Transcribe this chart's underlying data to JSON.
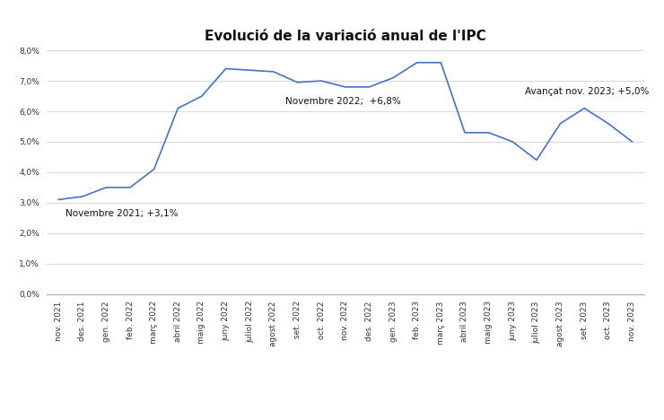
{
  "title": "Evolució de la variació anual de l'IPC",
  "labels": [
    "nov. 2021",
    "des. 2021",
    "gen. 2022",
    "feb. 2022",
    "març 2022",
    "abril 2022",
    "maig 2022",
    "juny 2022",
    "juliol 2022",
    "agost 2022",
    "set. 2022",
    "oct. 2022",
    "nov. 2022",
    "des. 2022",
    "gen. 2023",
    "feb. 2023",
    "març 2023",
    "abril 2023",
    "maig 2023",
    "juny 2023",
    "juliol 2023",
    "agost 2023",
    "set. 2023",
    "oct. 2023",
    "nov. 2023"
  ],
  "values": [
    3.1,
    3.2,
    3.5,
    3.5,
    4.1,
    6.1,
    6.5,
    7.4,
    7.35,
    7.3,
    6.95,
    7.0,
    6.8,
    6.8,
    7.1,
    7.6,
    7.6,
    5.3,
    5.3,
    5.0,
    4.4,
    5.6,
    6.1,
    5.6,
    5.0
  ],
  "line_color": "#4472C4",
  "annotation1_text": "Novembre 2021; +3,1%",
  "annotation1_xi": 0,
  "annotation1_yi": 3.1,
  "annotation1_xt": 0.3,
  "annotation1_yt": 2.55,
  "annotation2_text": "Novembre 2022;  +6,8%",
  "annotation2_xi": 12,
  "annotation2_yi": 6.8,
  "annotation2_xt": 9.5,
  "annotation2_yt": 6.25,
  "annotation3_text": "Avançat nov. 2023; +5,0%",
  "annotation3_xi": 24,
  "annotation3_yi": 5.0,
  "annotation3_xt": 19.5,
  "annotation3_yt": 6.55,
  "ylim": [
    0.0,
    8.0
  ],
  "yticks": [
    0.0,
    1.0,
    2.0,
    3.0,
    4.0,
    5.0,
    6.0,
    7.0,
    8.0
  ],
  "background_color": "#ffffff",
  "title_fontsize": 11,
  "annotation_fontsize": 7.5,
  "tick_fontsize": 6.5
}
